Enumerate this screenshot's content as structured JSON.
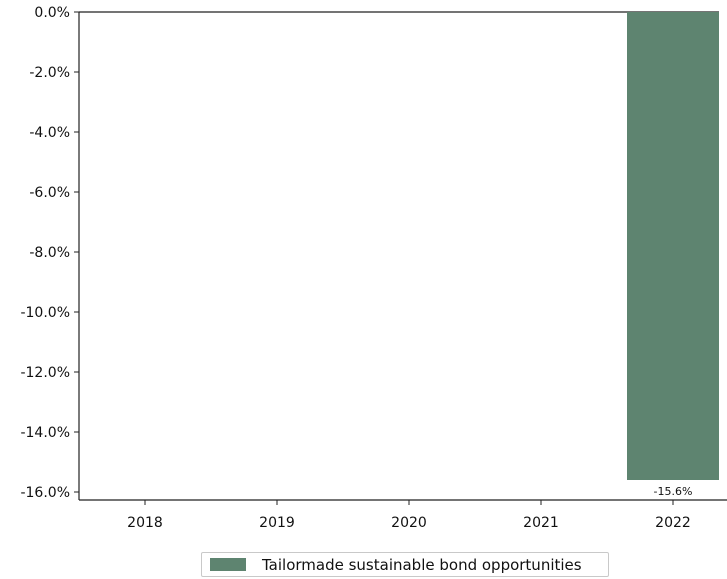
{
  "chart_data": {
    "type": "bar",
    "categories": [
      "2018",
      "2019",
      "2020",
      "2021",
      "2022"
    ],
    "series": [
      {
        "name": "Tailormade sustainable bond opportunities",
        "values": [
          null,
          null,
          null,
          null,
          -15.6
        ],
        "data_labels": [
          "",
          "",
          "",
          "",
          "-15.6%"
        ],
        "color": "#5e8470"
      }
    ],
    "ylim": [
      -16.0,
      0.0
    ],
    "yticks": [
      0.0,
      -2.0,
      -4.0,
      -6.0,
      -8.0,
      -10.0,
      -12.0,
      -14.0,
      -16.0
    ],
    "ytick_labels": [
      "0.0%",
      "-2.0%",
      "-4.0%",
      "-6.0%",
      "-8.0%",
      "-10.0%",
      "-12.0%",
      "-14.0%",
      "-16.0%"
    ],
    "title": "",
    "xlabel": "",
    "ylabel": "",
    "grid": false,
    "legend_position": "bottom-center"
  }
}
